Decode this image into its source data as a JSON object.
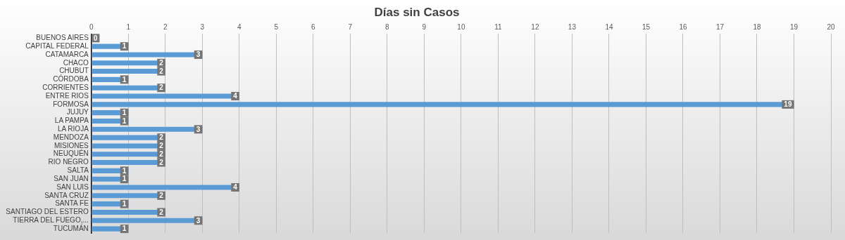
{
  "chart_data": {
    "type": "bar",
    "orientation": "horizontal",
    "title": "Días sin Casos",
    "categories": [
      "BUENOS AIRES",
      "CAPITAL FEDERAL",
      "CATAMARCA",
      "CHACO",
      "CHUBUT",
      "CÓRDOBA",
      "CORRIENTES",
      "ENTRE RIOS",
      "FORMOSA",
      "JUJUY",
      "LA PAMPA",
      "LA RIOJA",
      "MENDOZA",
      "MISIONES",
      "NEUQUÉN",
      "RIO NEGRO",
      "SALTA",
      "SAN JUAN",
      "SAN LUIS",
      "SANTA CRUZ",
      "SANTA FE",
      "SANTIAGO DEL ESTERO",
      "TIERRA DEL FUEGO,...",
      "TUCUMÁN"
    ],
    "values": [
      0,
      1,
      3,
      2,
      2,
      1,
      2,
      4,
      19,
      1,
      1,
      3,
      2,
      2,
      2,
      2,
      1,
      1,
      4,
      2,
      1,
      2,
      3,
      1
    ],
    "color": "#5b9bd5",
    "xlim": [
      0,
      20
    ],
    "xticks": [
      0,
      1,
      2,
      3,
      4,
      5,
      6,
      7,
      8,
      9,
      10,
      11,
      12,
      13,
      14,
      15,
      16,
      17,
      18,
      19,
      20
    ],
    "grid": "x",
    "legend": false,
    "data_labels": true
  }
}
